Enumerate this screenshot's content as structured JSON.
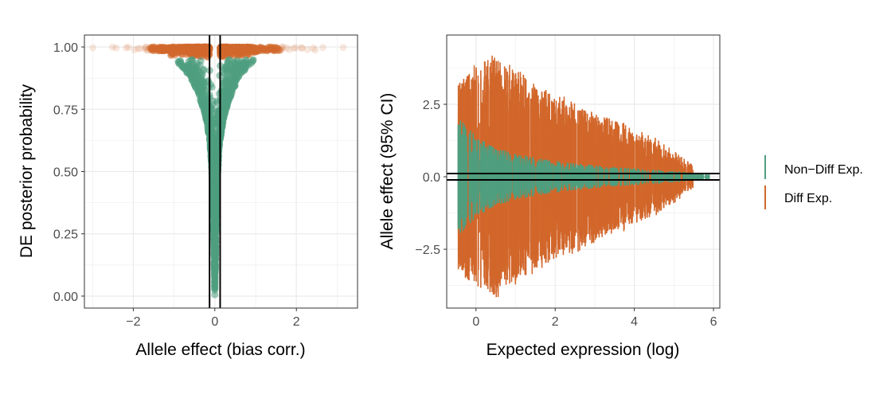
{
  "colors": {
    "non_diff": "#4f9e7f",
    "diff": "#d2672b",
    "grid": "#ebebeb",
    "border": "#333333"
  },
  "chart_data": [
    {
      "type": "scatter",
      "xlabel": "Allele effect (bias corr.)",
      "ylabel": "DE posterior probability",
      "xlim": [
        -3.2,
        3.5
      ],
      "ylim": [
        -0.048,
        1.048
      ],
      "x_ticks": [
        {
          "value": -2,
          "label": "−2"
        },
        {
          "value": 0,
          "label": "0"
        },
        {
          "value": 2,
          "label": "2"
        }
      ],
      "y_ticks": [
        {
          "value": 0,
          "label": "0.00"
        },
        {
          "value": 0.25,
          "label": "0.25"
        },
        {
          "value": 0.5,
          "label": "0.50"
        },
        {
          "value": 0.75,
          "label": "0.75"
        },
        {
          "value": 1,
          "label": "1.00"
        }
      ],
      "grid": true,
      "vlines": [
        -0.13,
        0.13
      ],
      "series": [
        {
          "name": "Non-Diff Exp.",
          "color_key": "non_diff",
          "envelope_abs_effect_vs_prob": [
            [
              0.0,
              0.0
            ],
            [
              0.03,
              0.3
            ],
            [
              0.07,
              0.5
            ],
            [
              0.12,
              0.62
            ],
            [
              0.2,
              0.7
            ],
            [
              0.3,
              0.76
            ],
            [
              0.45,
              0.83
            ],
            [
              0.6,
              0.88
            ],
            [
              0.8,
              0.92
            ],
            [
              1.0,
              0.95
            ]
          ]
        },
        {
          "name": "Diff Exp.",
          "color_key": "diff",
          "prob_range": [
            0.95,
            1.0
          ],
          "abs_effect_range": [
            0.13,
            3.2
          ]
        }
      ]
    },
    {
      "type": "errorbar",
      "xlabel": "Expected expression (log)",
      "ylabel": "Allele effect (95% CI)",
      "xlim": [
        -0.74,
        6.16
      ],
      "ylim": [
        -4.53,
        4.89
      ],
      "x_ticks": [
        {
          "value": 0,
          "label": "0"
        },
        {
          "value": 2,
          "label": "2"
        },
        {
          "value": 4,
          "label": "4"
        },
        {
          "value": 6,
          "label": "6"
        }
      ],
      "y_ticks": [
        {
          "value": -2.5,
          "label": "−2.5"
        },
        {
          "value": 0,
          "label": "0.0"
        },
        {
          "value": 2.5,
          "label": "2.5"
        }
      ],
      "grid": true,
      "hlines": [
        -0.11,
        0.11
      ],
      "series": [
        {
          "name": "Diff Exp.",
          "color_key": "diff",
          "half_width_envelope": [
            [
              -0.45,
              3.2
            ],
            [
              0,
              3.8
            ],
            [
              0.5,
              4.2
            ],
            [
              1,
              3.6
            ],
            [
              2,
              2.8
            ],
            [
              3,
              2.2
            ],
            [
              4,
              1.6
            ],
            [
              4.8,
              1.0
            ],
            [
              5.3,
              0.5
            ],
            [
              5.6,
              0.2
            ]
          ]
        },
        {
          "name": "Non-Diff Exp.",
          "color_key": "non_diff",
          "half_width_envelope": [
            [
              -0.45,
              2.1
            ],
            [
              0,
              1.4
            ],
            [
              0.5,
              1.0
            ],
            [
              1,
              0.8
            ],
            [
              2,
              0.55
            ],
            [
              3,
              0.4
            ],
            [
              4,
              0.3
            ],
            [
              5,
              0.2
            ],
            [
              5.9,
              0.1
            ]
          ]
        }
      ]
    }
  ],
  "legend": {
    "position": "right",
    "items": [
      {
        "label": "Non−Diff Exp.",
        "color_key": "non_diff"
      },
      {
        "label": "Diff Exp.",
        "color_key": "diff"
      }
    ]
  }
}
